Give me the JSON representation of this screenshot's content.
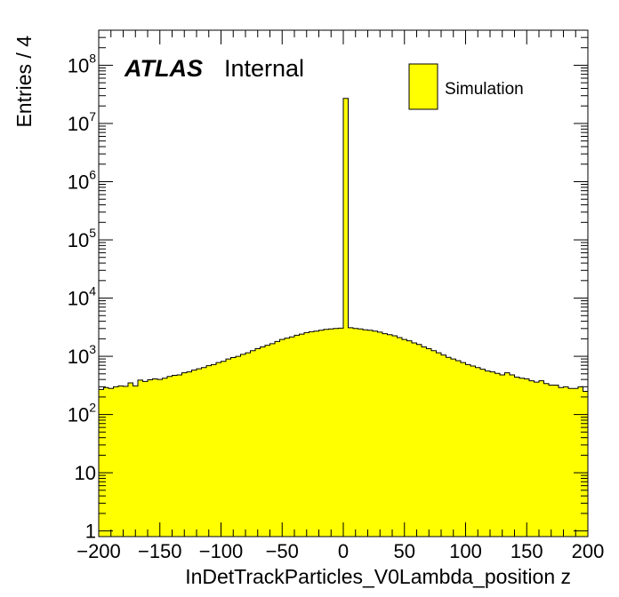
{
  "chart_data": {
    "type": "histogram",
    "xlabel": "InDetTrackParticles_V0Lambda_position z",
    "ylabel": "Entries / 4",
    "xlim": [
      -200,
      200
    ],
    "ylim": [
      0.8,
      400000000
    ],
    "y_scale": "log",
    "bin_width": 4,
    "x_ticks": [
      -200,
      -150,
      -100,
      -50,
      0,
      50,
      100,
      150,
      200
    ],
    "x_tick_labels": [
      "−200",
      "−150",
      "−100",
      "−50",
      "0",
      "50",
      "100",
      "150",
      "200"
    ],
    "y_ticks": [
      {
        "value": 1,
        "base": "1",
        "exp": ""
      },
      {
        "value": 10,
        "base": "10",
        "exp": ""
      },
      {
        "value": 100,
        "base": "10",
        "exp": "2"
      },
      {
        "value": 1000,
        "base": "10",
        "exp": "3"
      },
      {
        "value": 10000,
        "base": "10",
        "exp": "4"
      },
      {
        "value": 100000,
        "base": "10",
        "exp": "5"
      },
      {
        "value": 1000000,
        "base": "10",
        "exp": "6"
      },
      {
        "value": 10000000,
        "base": "10",
        "exp": "7"
      },
      {
        "value": 100000000,
        "base": "10",
        "exp": "8"
      }
    ],
    "label_main": "ATLAS",
    "label_status": "Internal",
    "legend": {
      "placement": "top-right",
      "entry": "Simulation"
    },
    "fill_color": "#ffff00",
    "line_color": "#000000",
    "bin_edges": [
      -200,
      -196,
      -192,
      -188,
      -184,
      -180,
      -176,
      -172,
      -168,
      -164,
      -160,
      -156,
      -152,
      -148,
      -144,
      -140,
      -136,
      -132,
      -128,
      -124,
      -120,
      -116,
      -112,
      -108,
      -104,
      -100,
      -96,
      -92,
      -88,
      -84,
      -80,
      -76,
      -72,
      -68,
      -64,
      -60,
      -56,
      -52,
      -48,
      -44,
      -40,
      -36,
      -32,
      -28,
      -24,
      -20,
      -16,
      -12,
      -8,
      -4,
      0,
      4,
      8,
      12,
      16,
      20,
      24,
      28,
      32,
      36,
      40,
      44,
      48,
      52,
      56,
      60,
      64,
      68,
      72,
      76,
      80,
      84,
      88,
      92,
      96,
      100,
      104,
      108,
      112,
      116,
      120,
      124,
      128,
      132,
      136,
      140,
      144,
      148,
      152,
      156,
      160,
      164,
      168,
      172,
      176,
      180,
      184,
      188,
      192,
      196,
      200
    ],
    "counts": [
      270,
      290,
      280,
      300,
      310,
      305,
      350,
      310,
      390,
      370,
      395,
      410,
      400,
      420,
      450,
      470,
      480,
      520,
      540,
      580,
      610,
      640,
      690,
      720,
      780,
      820,
      900,
      950,
      1000,
      1080,
      1150,
      1250,
      1350,
      1450,
      1550,
      1650,
      1800,
      1950,
      2050,
      2150,
      2300,
      2400,
      2550,
      2650,
      2700,
      2800,
      2900,
      2950,
      3000,
      3050,
      27000000,
      3100,
      3000,
      2950,
      2850,
      2800,
      2700,
      2600,
      2450,
      2350,
      2250,
      2100,
      1950,
      1850,
      1700,
      1600,
      1450,
      1350,
      1250,
      1150,
      1050,
      960,
      900,
      840,
      780,
      720,
      680,
      640,
      600,
      560,
      540,
      510,
      480,
      520,
      480,
      440,
      420,
      410,
      380,
      360,
      380,
      340,
      320,
      320,
      290,
      300,
      280,
      280,
      300,
      250
    ]
  }
}
